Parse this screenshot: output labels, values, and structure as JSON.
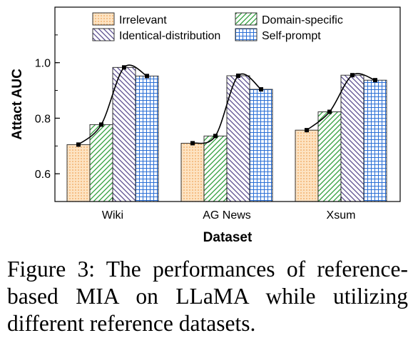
{
  "chart_data": {
    "type": "bar",
    "xlabel": "Dataset",
    "ylabel": "Attact AUC",
    "ylim": [
      0.5,
      1.2
    ],
    "yticks": [
      0.6,
      0.8,
      1.0
    ],
    "ytick_labels": [
      "0.6",
      "0.8",
      "1.0"
    ],
    "categories": [
      "Wiki",
      "AG News",
      "Xsum"
    ],
    "series": [
      {
        "name": "Irrelevant",
        "values": [
          0.705,
          0.71,
          0.757
        ],
        "color": "#f9c990",
        "pattern": "dots"
      },
      {
        "name": "Domain-specific",
        "values": [
          0.777,
          0.736,
          0.823
        ],
        "color": "#2e9e3a",
        "pattern": "diagonal"
      },
      {
        "name": "Identical-distribution",
        "values": [
          0.983,
          0.953,
          0.955
        ],
        "color": "#5a4d8f",
        "pattern": "back-diagonal"
      },
      {
        "name": "Self-prompt",
        "values": [
          0.952,
          0.904,
          0.937
        ],
        "color": "#2a6fd6",
        "pattern": "grid"
      }
    ],
    "trend_line": true,
    "grid": false,
    "legend_position": "top"
  },
  "caption": "Figure 3: The performances of reference-based MIA on LLaMA while utilizing different reference datasets."
}
